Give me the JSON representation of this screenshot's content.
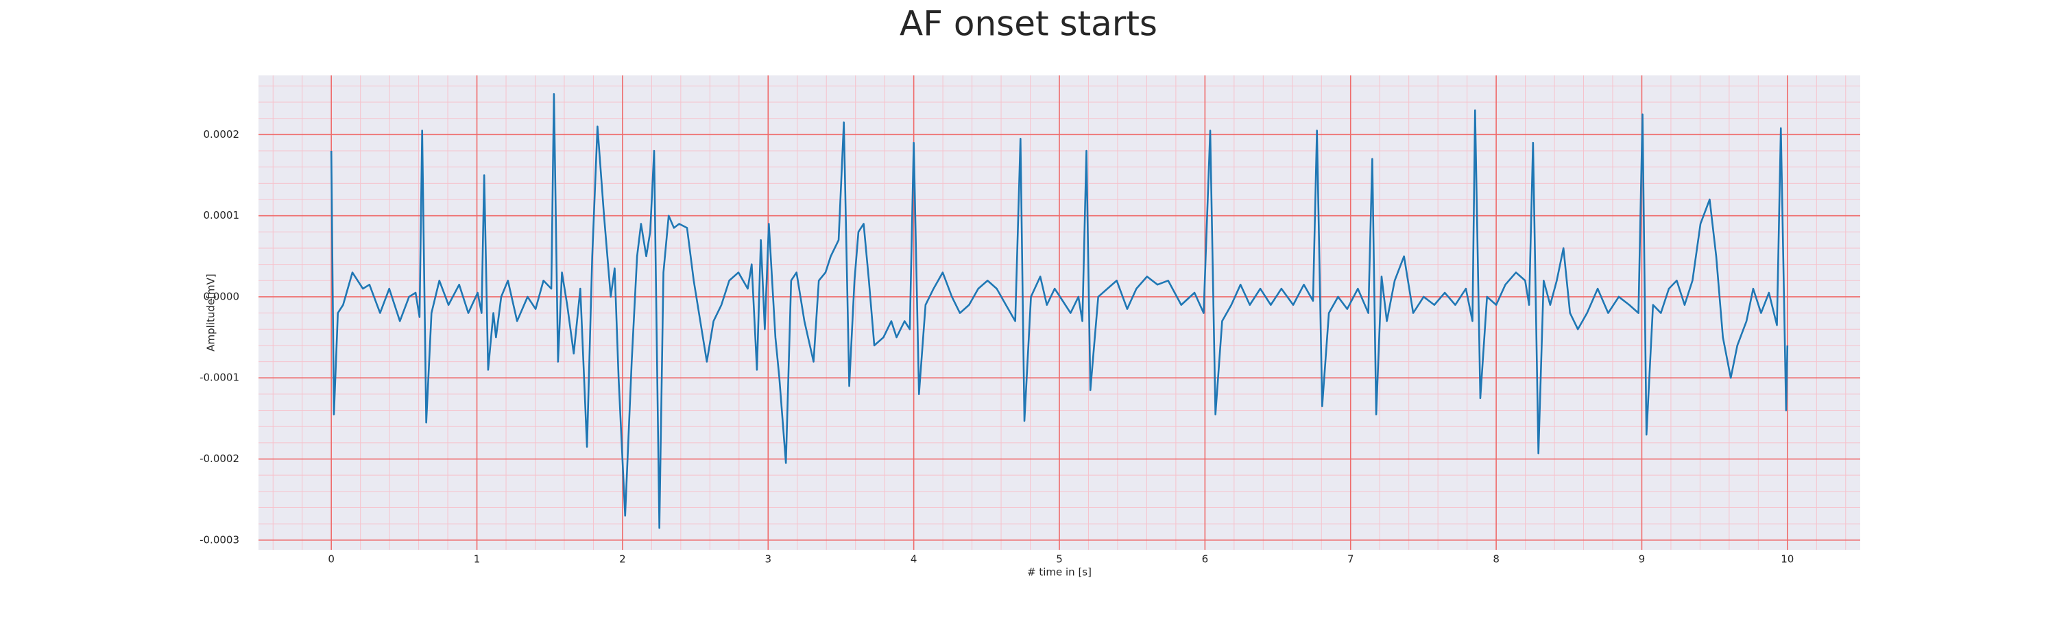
{
  "chart_data": {
    "type": "line",
    "title": "AF onset starts",
    "xlabel": "# time in [s]",
    "ylabel": "Amplitude[mV]",
    "color": "#1f77b4",
    "grid": true,
    "grid_color": "#ef6b6b",
    "minor_grid": true,
    "minor_grid_color": "#f6c2cc",
    "minor_divisions": 5,
    "background": "#eaeaf2",
    "xlim": [
      -0.5,
      10.5
    ],
    "xticks": [
      0,
      1,
      2,
      3,
      4,
      5,
      6,
      7,
      8,
      9,
      10
    ],
    "ylim": [
      -0.000312,
      0.000273
    ],
    "yticks": [
      -0.0003,
      -0.0002,
      -0.0001,
      {
        "value": 0,
        "label": "0.0000"
      },
      0.0001,
      0.0002
    ],
    "x": [
      0,
      0.018,
      0.045,
      0.081,
      0.145,
      0.217,
      0.262,
      0.335,
      0.398,
      0.471,
      0.534,
      0.579,
      0.606,
      0.624,
      0.652,
      0.688,
      0.742,
      0.805,
      0.878,
      0.941,
      1.005,
      1.032,
      1.05,
      1.077,
      1.113,
      1.131,
      1.167,
      1.213,
      1.276,
      1.348,
      1.403,
      1.457,
      1.511,
      1.529,
      1.557,
      1.584,
      1.62,
      1.665,
      1.71,
      1.756,
      1.792,
      1.828,
      1.873,
      1.919,
      1.946,
      1.973,
      2.018,
      2.063,
      2.1,
      2.127,
      2.163,
      2.19,
      2.217,
      2.253,
      2.281,
      2.317,
      2.353,
      2.389,
      2.443,
      2.489,
      2.534,
      2.579,
      2.625,
      2.679,
      2.733,
      2.796,
      2.86,
      2.887,
      2.923,
      2.95,
      2.977,
      3.005,
      3.05,
      3.077,
      3.122,
      3.158,
      3.195,
      3.249,
      3.312,
      3.348,
      3.394,
      3.43,
      3.484,
      3.52,
      3.557,
      3.593,
      3.62,
      3.656,
      3.692,
      3.729,
      3.792,
      3.846,
      3.882,
      3.937,
      3.973,
      4.0,
      4.036,
      4.081,
      4.136,
      4.199,
      4.262,
      4.317,
      4.38,
      4.443,
      4.507,
      4.57,
      4.633,
      4.697,
      4.733,
      4.76,
      4.805,
      4.869,
      4.914,
      4.968,
      5.023,
      5.077,
      5.131,
      5.158,
      5.186,
      5.213,
      5.267,
      5.33,
      5.394,
      5.466,
      5.529,
      5.602,
      5.674,
      5.747,
      5.837,
      5.928,
      5.991,
      6.036,
      6.072,
      6.118,
      6.181,
      6.244,
      6.308,
      6.38,
      6.452,
      6.525,
      6.606,
      6.679,
      6.742,
      6.769,
      6.805,
      6.851,
      6.914,
      6.977,
      7.05,
      7.122,
      7.149,
      7.176,
      7.213,
      7.249,
      7.303,
      7.367,
      7.43,
      7.502,
      7.575,
      7.647,
      7.719,
      7.792,
      7.837,
      7.855,
      7.891,
      7.937,
      8.0,
      8.063,
      8.136,
      8.199,
      8.226,
      8.253,
      8.29,
      8.326,
      8.371,
      8.416,
      8.462,
      8.507,
      8.561,
      8.624,
      8.697,
      8.769,
      8.842,
      8.914,
      8.977,
      9.005,
      9.032,
      9.077,
      9.131,
      9.186,
      9.24,
      9.294,
      9.348,
      9.403,
      9.466,
      9.511,
      9.557,
      9.611,
      9.656,
      9.719,
      9.765,
      9.819,
      9.873,
      9.928,
      9.955,
      9.991,
      10.0
    ],
    "values": [
      0.00018,
      -0.000145,
      -2e-05,
      -1e-05,
      3e-05,
      1e-05,
      1.5e-05,
      -2e-05,
      1e-05,
      -3e-05,
      0.0,
      5e-06,
      -2.5e-05,
      0.000205,
      -0.000155,
      -2e-05,
      2e-05,
      -1e-05,
      1.5e-05,
      -2e-05,
      5e-06,
      -2e-05,
      0.00015,
      -9e-05,
      -2e-05,
      -5e-05,
      0.0,
      2e-05,
      -3e-05,
      0.0,
      -1.5e-05,
      2e-05,
      1e-05,
      0.00025,
      -8e-05,
      3e-05,
      -1e-05,
      -7e-05,
      1e-05,
      -0.000185,
      5e-05,
      0.00021,
      0.0001,
      0.0,
      3.5e-05,
      -0.0001,
      -0.00027,
      -8e-05,
      5e-05,
      9e-05,
      5e-05,
      8e-05,
      0.00018,
      -0.000285,
      3e-05,
      0.0001,
      8.5e-05,
      9e-05,
      8.5e-05,
      2e-05,
      -3e-05,
      -8e-05,
      -3e-05,
      -1e-05,
      2e-05,
      3e-05,
      1e-05,
      4e-05,
      -9e-05,
      7e-05,
      -4e-05,
      9e-05,
      -5e-05,
      -0.0001,
      -0.000205,
      2e-05,
      3e-05,
      -3e-05,
      -8e-05,
      2e-05,
      3e-05,
      5e-05,
      7e-05,
      0.000215,
      -0.00011,
      2e-05,
      8e-05,
      9e-05,
      2e-05,
      -6e-05,
      -5e-05,
      -3e-05,
      -5e-05,
      -3e-05,
      -4e-05,
      0.00019,
      -0.00012,
      -1e-05,
      1e-05,
      3e-05,
      0.0,
      -2e-05,
      -1e-05,
      1e-05,
      2e-05,
      1e-05,
      -1e-05,
      -3e-05,
      0.000195,
      -0.000153,
      0.0,
      2.5e-05,
      -1e-05,
      1e-05,
      -5e-06,
      -2e-05,
      0.0,
      -3e-05,
      0.00018,
      -0.000115,
      0.0,
      1e-05,
      2e-05,
      -1.5e-05,
      1e-05,
      2.5e-05,
      1.5e-05,
      2e-05,
      -1e-05,
      5e-06,
      -2e-05,
      0.000205,
      -0.000145,
      -3e-05,
      -1e-05,
      1.5e-05,
      -1e-05,
      1e-05,
      -1e-05,
      1e-05,
      -1e-05,
      1.5e-05,
      -5e-06,
      0.000205,
      -0.000135,
      -2e-05,
      0.0,
      -1.5e-05,
      1e-05,
      -2e-05,
      0.00017,
      -0.000145,
      2.5e-05,
      -3e-05,
      2e-05,
      5e-05,
      -2e-05,
      0.0,
      -1e-05,
      5e-06,
      -1e-05,
      1e-05,
      -3e-05,
      0.00023,
      -0.000125,
      0.0,
      -1e-05,
      1.5e-05,
      3e-05,
      2e-05,
      -1e-05,
      0.00019,
      -0.000193,
      2e-05,
      -1e-05,
      2e-05,
      6e-05,
      -2e-05,
      -4e-05,
      -2e-05,
      1e-05,
      -2e-05,
      0.0,
      -1e-05,
      -2e-05,
      0.000225,
      -0.00017,
      -1e-05,
      -2e-05,
      1e-05,
      2e-05,
      -1e-05,
      2e-05,
      9e-05,
      0.00012,
      5e-05,
      -5e-05,
      -0.0001,
      -6e-05,
      -3e-05,
      1e-05,
      -2e-05,
      5e-06,
      -3.5e-05,
      0.000208,
      -0.00014,
      -6e-05
    ]
  }
}
